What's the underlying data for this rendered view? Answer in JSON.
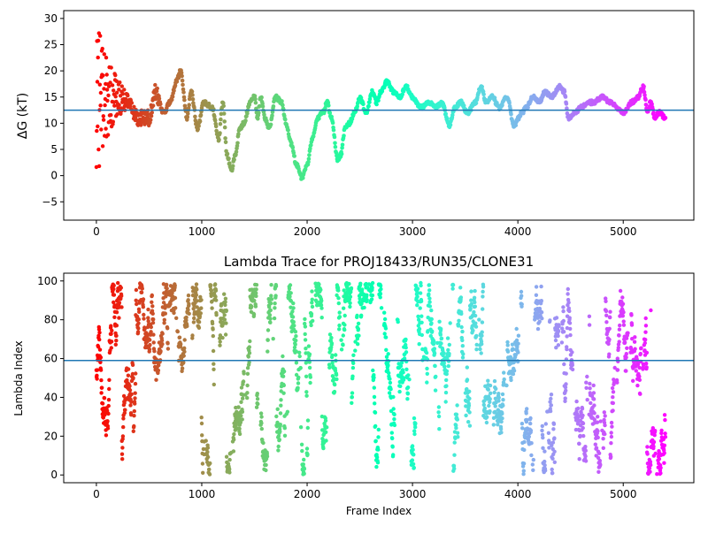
{
  "chart_data": [
    {
      "type": "scatter",
      "title": "",
      "xlabel": "",
      "ylabel": "ΔG (kT)",
      "xlim": [
        -310,
        5670
      ],
      "ylim": [
        -8.5,
        31.5
      ],
      "xticks": [
        0,
        1000,
        2000,
        3000,
        4000,
        5000
      ],
      "yticks": [
        -5,
        0,
        5,
        10,
        15,
        20,
        25,
        30
      ],
      "hline": 12.5,
      "hline_color": "#1f77b4",
      "colormap": "rainbow-reversed",
      "trace_anchors": [
        [
          0,
          15
        ],
        [
          150,
          15
        ],
        [
          300,
          14
        ],
        [
          400,
          11
        ],
        [
          500,
          11
        ],
        [
          560,
          16
        ],
        [
          640,
          12
        ],
        [
          700,
          14
        ],
        [
          760,
          18
        ],
        [
          800,
          20
        ],
        [
          860,
          11
        ],
        [
          900,
          16
        ],
        [
          960,
          9
        ],
        [
          1020,
          14
        ],
        [
          1100,
          13
        ],
        [
          1160,
          7
        ],
        [
          1200,
          14
        ],
        [
          1240,
          4
        ],
        [
          1280,
          1
        ],
        [
          1320,
          4
        ],
        [
          1360,
          9
        ],
        [
          1400,
          10
        ],
        [
          1460,
          14
        ],
        [
          1500,
          15
        ],
        [
          1530,
          11
        ],
        [
          1560,
          15
        ],
        [
          1600,
          11
        ],
        [
          1640,
          9
        ],
        [
          1700,
          15
        ],
        [
          1760,
          14
        ],
        [
          1800,
          10
        ],
        [
          1850,
          6
        ],
        [
          1900,
          2
        ],
        [
          1950,
          -0.5
        ],
        [
          2000,
          2
        ],
        [
          2050,
          7
        ],
        [
          2100,
          11
        ],
        [
          2150,
          12
        ],
        [
          2190,
          14
        ],
        [
          2230,
          11
        ],
        [
          2290,
          3
        ],
        [
          2320,
          4
        ],
        [
          2360,
          9
        ],
        [
          2400,
          10
        ],
        [
          2450,
          12
        ],
        [
          2500,
          15
        ],
        [
          2560,
          12
        ],
        [
          2620,
          16
        ],
        [
          2660,
          14
        ],
        [
          2700,
          16
        ],
        [
          2760,
          18
        ],
        [
          2820,
          16
        ],
        [
          2880,
          15
        ],
        [
          2940,
          17
        ],
        [
          3000,
          15
        ],
        [
          3080,
          13
        ],
        [
          3160,
          14
        ],
        [
          3220,
          13
        ],
        [
          3280,
          14
        ],
        [
          3350,
          9.5
        ],
        [
          3400,
          13
        ],
        [
          3460,
          14
        ],
        [
          3520,
          12
        ],
        [
          3600,
          14
        ],
        [
          3650,
          17
        ],
        [
          3700,
          14
        ],
        [
          3760,
          15
        ],
        [
          3820,
          13
        ],
        [
          3900,
          15
        ],
        [
          3960,
          9.5
        ],
        [
          4040,
          12
        ],
        [
          4080,
          13
        ],
        [
          4140,
          15
        ],
        [
          4200,
          14
        ],
        [
          4260,
          16
        ],
        [
          4320,
          15
        ],
        [
          4400,
          17
        ],
        [
          4440,
          16
        ],
        [
          4480,
          11
        ],
        [
          4540,
          12
        ],
        [
          4600,
          13
        ],
        [
          4660,
          14
        ],
        [
          4720,
          14
        ],
        [
          4800,
          15
        ],
        [
          4880,
          14
        ],
        [
          4940,
          13
        ],
        [
          5000,
          12
        ],
        [
          5080,
          14
        ],
        [
          5140,
          15
        ],
        [
          5190,
          17
        ],
        [
          5230,
          12
        ],
        [
          5260,
          14
        ],
        [
          5300,
          11
        ],
        [
          5340,
          12
        ],
        [
          5400,
          11
        ]
      ],
      "early_scatter_range": [
        -6.5,
        29.5
      ]
    },
    {
      "type": "scatter",
      "title": "Lambda Trace for PROJ18433/RUN35/CLONE31",
      "xlabel": "Frame Index",
      "ylabel": "Lambda Index",
      "xlim": [
        -310,
        5670
      ],
      "ylim": [
        -4,
        104
      ],
      "xticks": [
        0,
        1000,
        2000,
        3000,
        4000,
        5000
      ],
      "yticks": [
        0,
        20,
        40,
        60,
        80,
        100
      ],
      "hline": 59,
      "hline_color": "#1f77b4",
      "colormap": "rainbow-reversed",
      "value_range": [
        0,
        99
      ]
    }
  ]
}
